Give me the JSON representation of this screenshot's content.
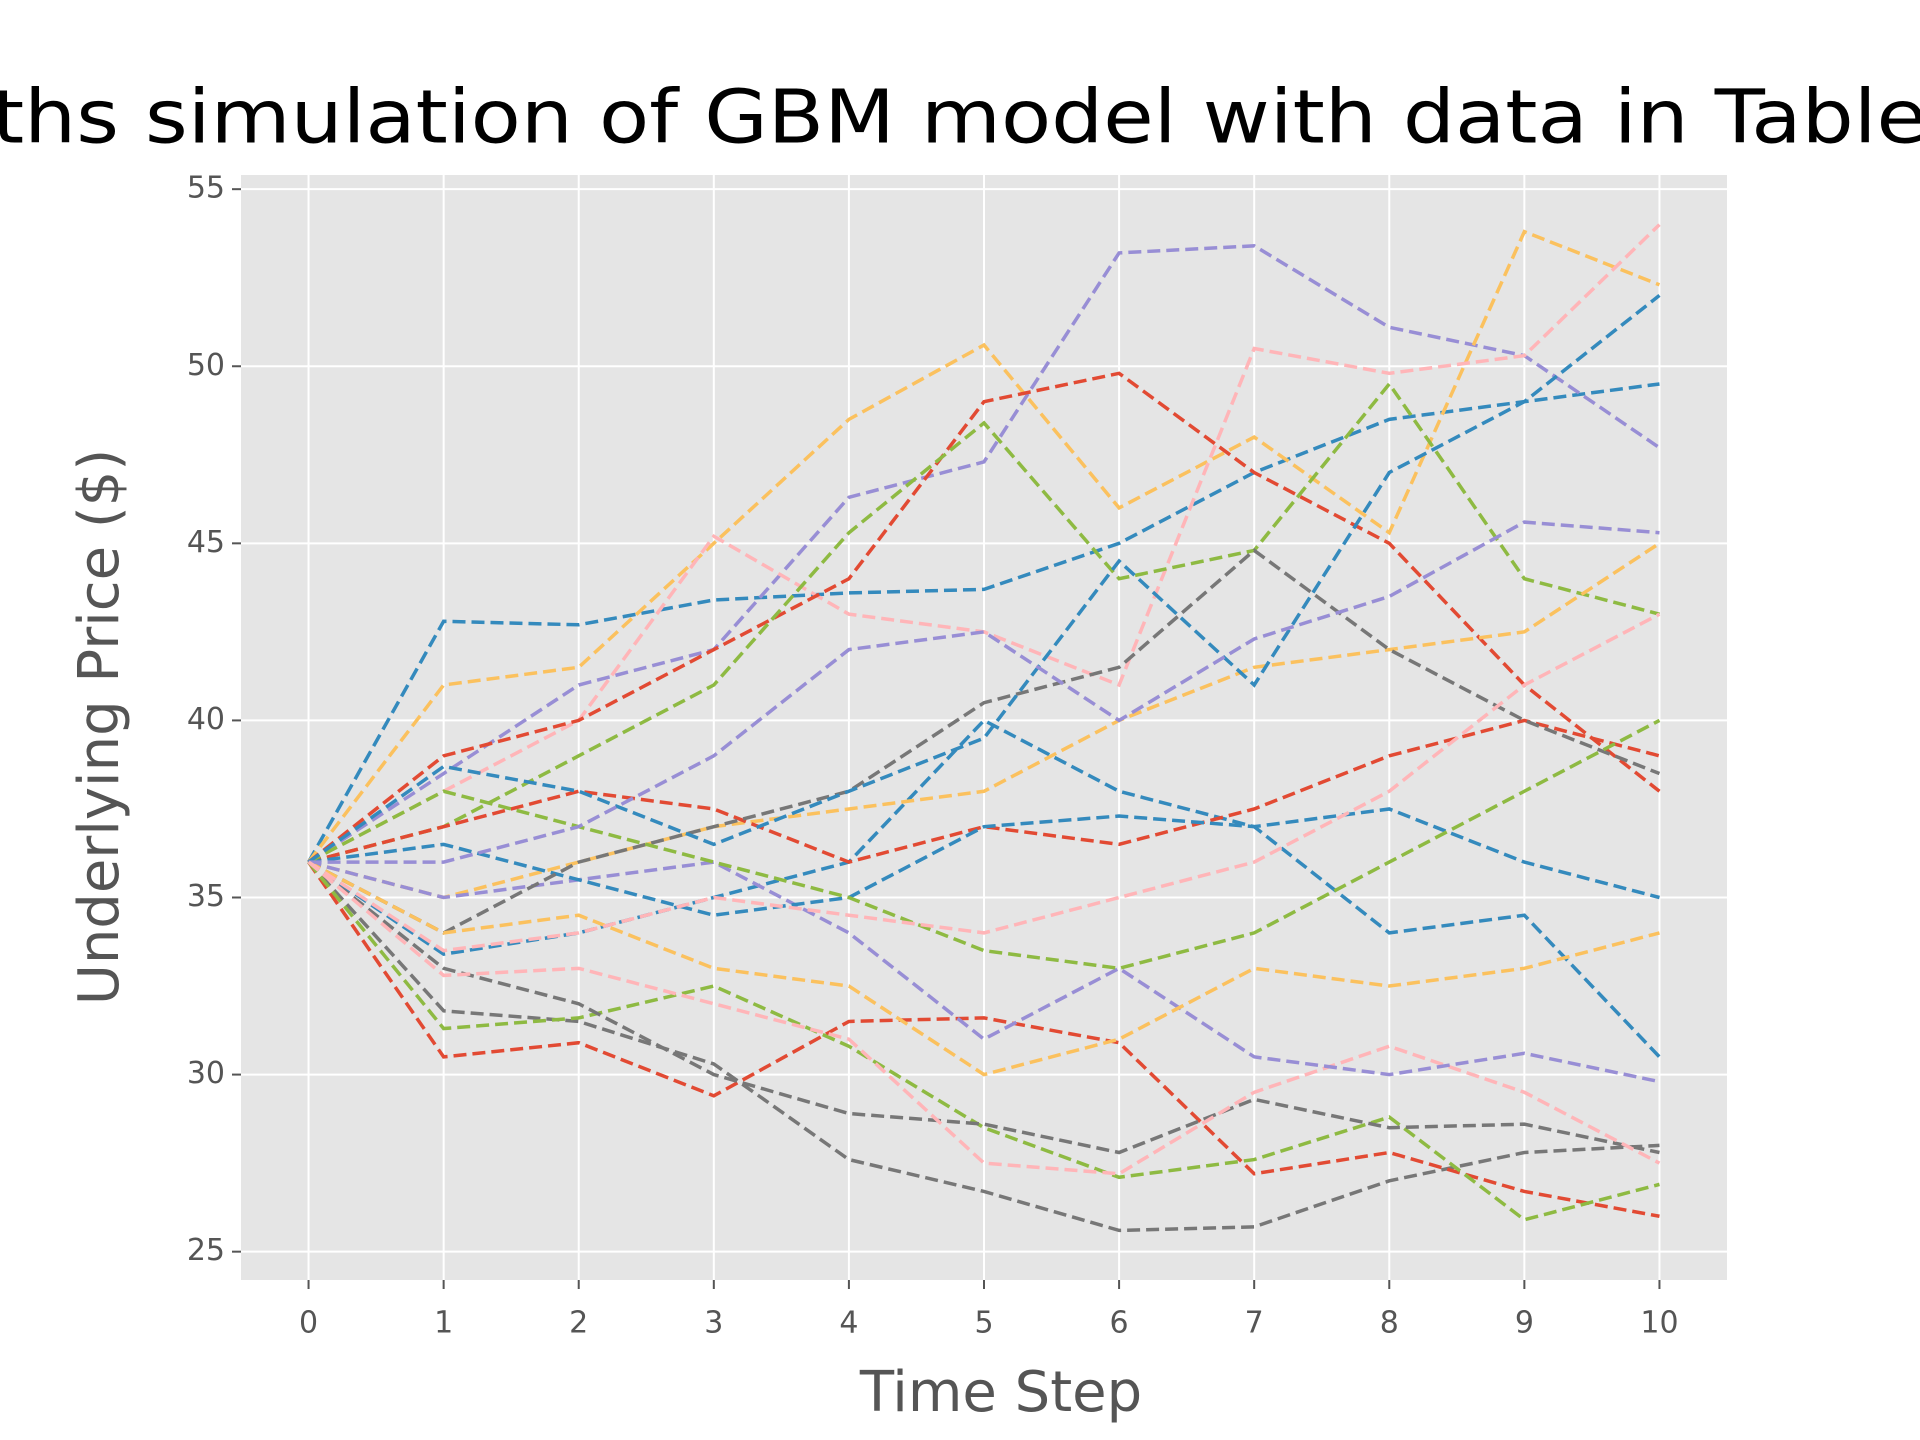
{
  "chart_data": {
    "type": "line",
    "title": "ths simulation of GBM model with data in Table",
    "x_label": "Time Step",
    "y_label": "Underlying Price ($)",
    "x": [
      0,
      1,
      2,
      3,
      4,
      5,
      6,
      7,
      8,
      9,
      10
    ],
    "xlim": [
      -0.5,
      10.5
    ],
    "xticks": [
      0,
      1,
      2,
      3,
      4,
      5,
      6,
      7,
      8,
      9,
      10
    ],
    "ylim": [
      24.2,
      55.4
    ],
    "yticks": [
      25,
      30,
      35,
      40,
      45,
      50,
      55
    ],
    "grid": true,
    "dashed": true,
    "series": [
      {
        "color": "#348ABD",
        "values": [
          36,
          42.8,
          42.7,
          43.4,
          43.6,
          43.7,
          45,
          47,
          48.5,
          49,
          49.5
        ]
      },
      {
        "color": "#988ED5",
        "values": [
          36,
          38.5,
          41,
          42,
          46.3,
          47.3,
          53.2,
          53.4,
          51.1,
          50.3,
          47.7
        ]
      },
      {
        "color": "#FBC15E",
        "values": [
          36,
          41,
          41.5,
          45,
          48.5,
          50.6,
          46,
          48,
          45.3,
          53.8,
          52.3
        ]
      },
      {
        "color": "#FFB5B8",
        "values": [
          36,
          38,
          40,
          45.2,
          43,
          42.5,
          41,
          50.5,
          49.8,
          50.3,
          54
        ]
      },
      {
        "color": "#E24A33",
        "values": [
          36,
          39,
          40,
          42,
          44,
          49,
          49.8,
          47,
          45,
          41,
          38
        ]
      },
      {
        "color": "#8EBA42",
        "values": [
          36,
          37,
          39,
          41,
          45.3,
          48.4,
          44,
          44.8,
          49.5,
          44,
          43
        ]
      },
      {
        "color": "#777777",
        "values": [
          36,
          31.8,
          31.5,
          30.3,
          27.6,
          26.7,
          25.6,
          25.7,
          27,
          27.8,
          28
        ]
      },
      {
        "color": "#E24A33",
        "values": [
          36,
          30.5,
          30.9,
          29.4,
          31.5,
          31.6,
          30.9,
          27.2,
          27.8,
          26.7,
          26
        ]
      },
      {
        "color": "#8EBA42",
        "values": [
          36,
          31.3,
          31.6,
          32.5,
          30.8,
          28.5,
          27.1,
          27.6,
          28.8,
          25.9,
          26.9
        ]
      },
      {
        "color": "#777777",
        "values": [
          36,
          33,
          32,
          30,
          28.9,
          28.6,
          27.8,
          29.3,
          28.5,
          28.6,
          27.8
        ]
      },
      {
        "color": "#348ABD",
        "values": [
          36,
          33.4,
          34,
          35,
          36,
          40,
          38,
          37,
          34,
          34.5,
          30.5
        ]
      },
      {
        "color": "#FBC15E",
        "values": [
          36,
          35,
          36,
          37,
          37.5,
          38,
          40,
          41.5,
          42,
          42.5,
          45
        ]
      },
      {
        "color": "#FFB5B8",
        "values": [
          36,
          32.8,
          33,
          32,
          31,
          27.5,
          27.2,
          29.5,
          30.8,
          29.5,
          27.5
        ]
      },
      {
        "color": "#988ED5",
        "values": [
          36,
          35,
          35.5,
          36,
          34,
          31,
          33,
          30.5,
          30,
          30.6,
          29.8
        ]
      },
      {
        "color": "#E24A33",
        "values": [
          36,
          37,
          38,
          37.5,
          36,
          37,
          36.5,
          37.5,
          39,
          40,
          39
        ]
      },
      {
        "color": "#348ABD",
        "values": [
          36,
          36.5,
          35.5,
          34.5,
          35,
          37,
          37.3,
          37,
          37.5,
          36,
          35
        ]
      },
      {
        "color": "#777777",
        "values": [
          36,
          34,
          36,
          37,
          38,
          40.5,
          41.5,
          44.8,
          42,
          40,
          38.5
        ]
      },
      {
        "color": "#8EBA42",
        "values": [
          36,
          38,
          37,
          36,
          35,
          33.5,
          33,
          34,
          36,
          38,
          40
        ]
      },
      {
        "color": "#FBC15E",
        "values": [
          36,
          34,
          34.5,
          33,
          32.5,
          30,
          31,
          33,
          32.5,
          33,
          34
        ]
      },
      {
        "color": "#348ABD",
        "values": [
          36,
          38.7,
          38,
          36.5,
          38,
          39.5,
          44.5,
          41,
          47,
          49,
          52
        ]
      },
      {
        "color": "#988ED5",
        "values": [
          36,
          36,
          37,
          39,
          42,
          42.5,
          40,
          42.3,
          43.5,
          45.6,
          45.3
        ]
      },
      {
        "color": "#FFB5B8",
        "values": [
          36,
          33.5,
          34,
          35,
          34.5,
          34,
          35,
          36,
          38,
          41,
          43
        ]
      }
    ]
  }
}
